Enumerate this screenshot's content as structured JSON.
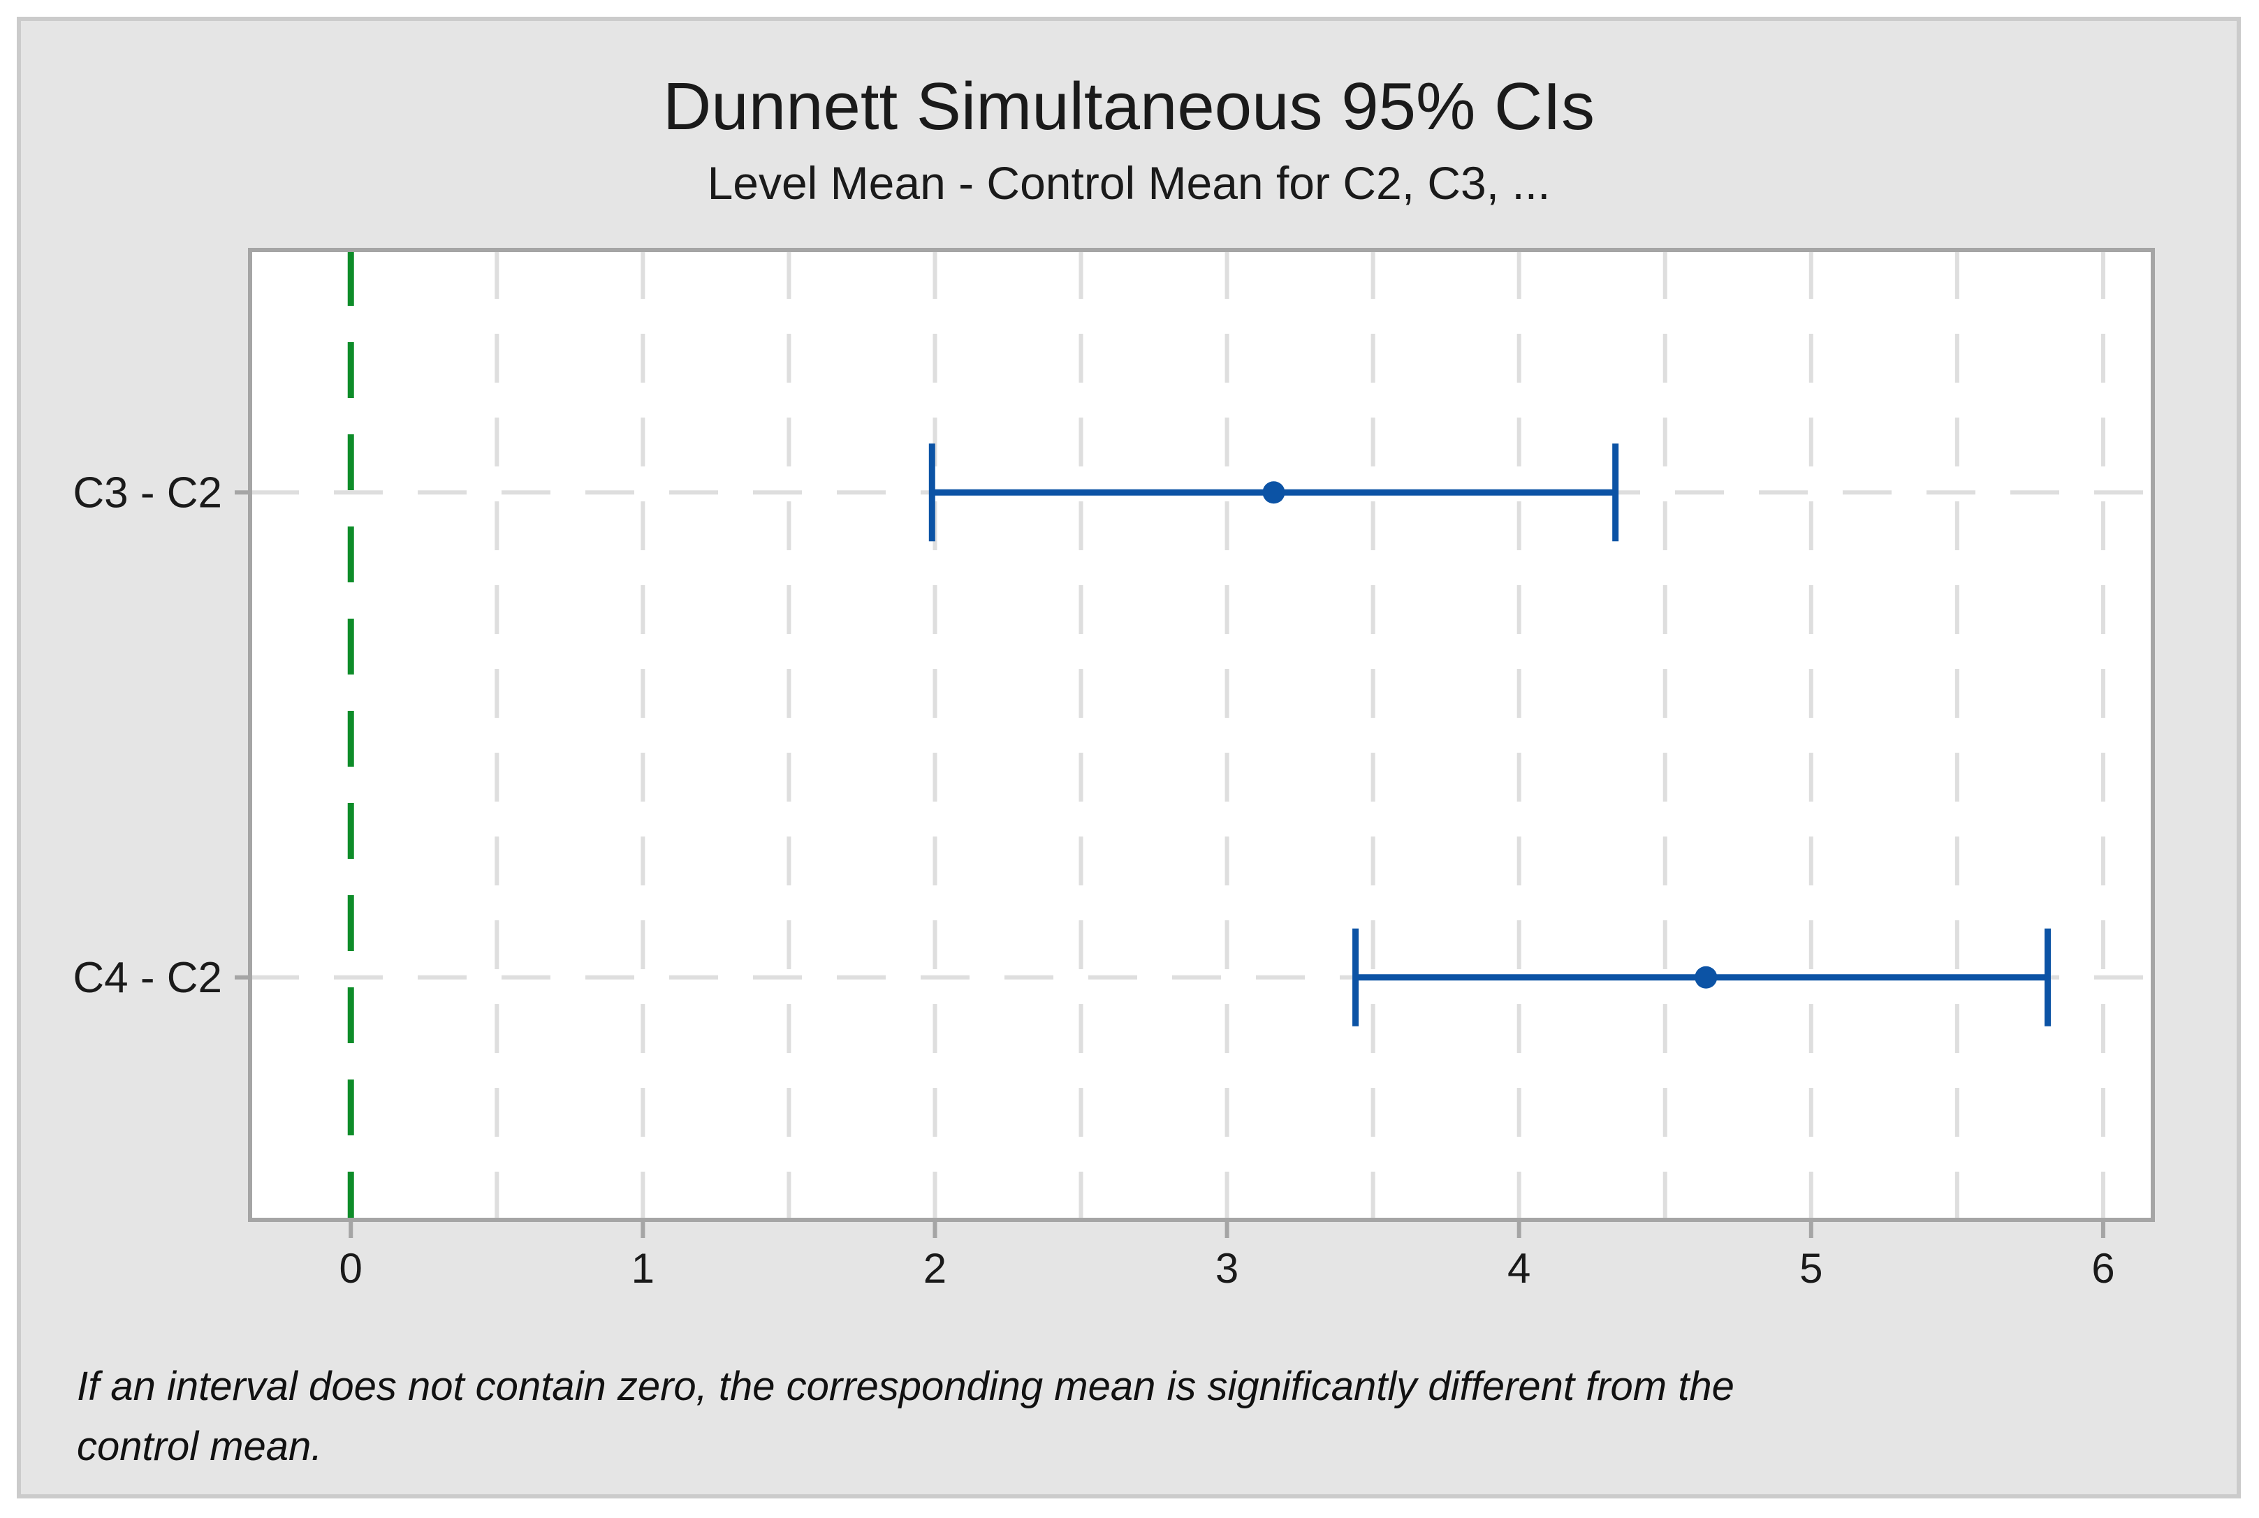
{
  "chart_data": {
    "type": "interval_plot",
    "title": "Dunnett Simultaneous 95% CIs",
    "subtitle": "Level Mean - Control Mean for C2, C3, ...",
    "footnote_lines": [
      "If an interval does not contain zero, the corresponding mean is significantly different from the",
      "control mean."
    ],
    "categories": [
      "C3 - C2",
      "C4 - C2"
    ],
    "intervals": [
      {
        "label": "C3 - C2",
        "lower": 1.99,
        "center": 3.16,
        "upper": 4.33
      },
      {
        "label": "C4 - C2",
        "lower": 3.44,
        "center": 4.64,
        "upper": 5.81
      }
    ],
    "reference_line_x": 0,
    "x_ticks": [
      0,
      1,
      2,
      3,
      4,
      5,
      6
    ],
    "xlim": [
      -0.345,
      6.17
    ],
    "grid_step": 0.5,
    "grid_style": "dashed",
    "legend_position": "none",
    "colors": {
      "interval": "#0c53a5",
      "reference_line": "#0e8c29",
      "gridline": "#dedede",
      "frame": "#a5a5a5",
      "tick_label": "#1a1a1a",
      "panel_background": "#e5e5e5",
      "panel_border": "#cbcbcb",
      "plot_background": "#ffffff",
      "text": "#1a1a1a"
    }
  }
}
